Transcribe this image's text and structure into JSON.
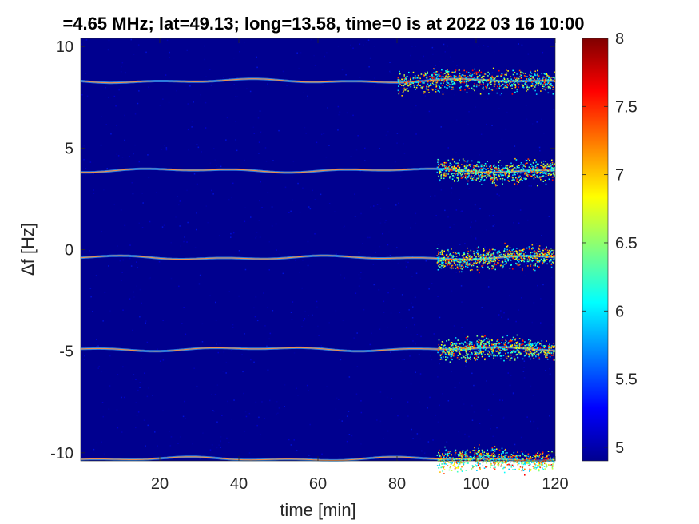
{
  "chart_data": {
    "type": "heatmap",
    "title": "=4.65 MHz;  lat=49.13; long=13.58, time=0 is at 2022 03 16 10:00",
    "xlabel": "time [min]",
    "ylabel": "Δf [Hz]",
    "xlim": [
      0,
      120
    ],
    "ylim": [
      -10.4,
      10.4
    ],
    "xticks": [
      20,
      40,
      60,
      80,
      100,
      120
    ],
    "yticks": [
      10,
      5,
      0,
      -5,
      -10
    ],
    "colorbar": {
      "colormap": "jet",
      "range": [
        4.9,
        8
      ],
      "ticks": [
        8,
        7.5,
        7,
        6.5,
        6,
        5.5,
        5
      ]
    },
    "traces": [
      {
        "delta_f": 8.3,
        "spread_after_min": 80
      },
      {
        "delta_f": 3.9,
        "spread_after_min": 90
      },
      {
        "delta_f": -0.4,
        "spread_after_min": 90
      },
      {
        "delta_f": -4.9,
        "spread_after_min": 90
      },
      {
        "delta_f": -10.3,
        "spread_after_min": 90
      }
    ]
  }
}
